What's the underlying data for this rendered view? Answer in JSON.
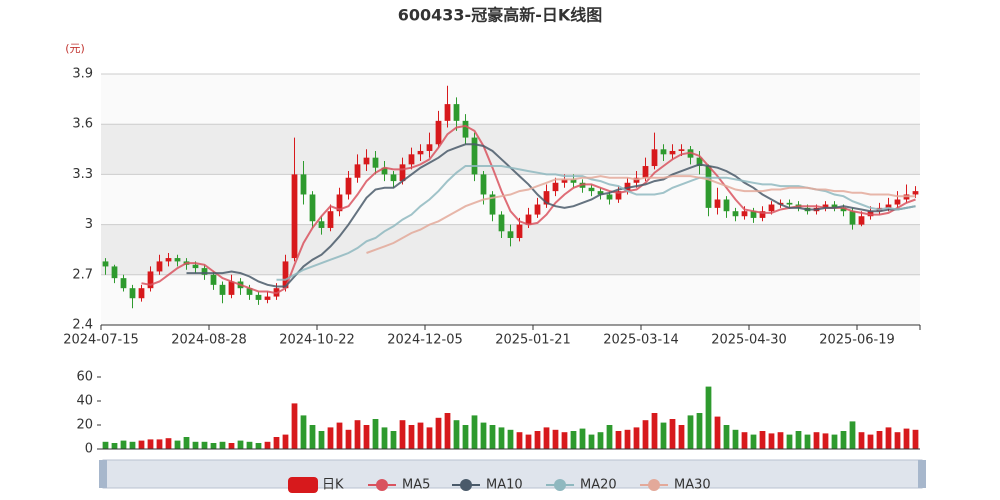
{
  "chart_data": [
    {
      "type": "candlestick",
      "title": "600433-冠豪高新-日K线图",
      "unit": "(元)",
      "categories": [
        "2024-07-15",
        null,
        null,
        null,
        null,
        null,
        null,
        null,
        null,
        null,
        null,
        null,
        "2024-08-28",
        null,
        null,
        null,
        null,
        null,
        null,
        null,
        null,
        null,
        null,
        null,
        "2024-10-22",
        null,
        null,
        null,
        null,
        null,
        null,
        null,
        null,
        null,
        null,
        null,
        "2024-12-05",
        null,
        null,
        null,
        null,
        null,
        null,
        null,
        null,
        null,
        null,
        null,
        "2025-01-21",
        null,
        null,
        null,
        null,
        null,
        null,
        null,
        null,
        null,
        null,
        null,
        "2025-03-14",
        null,
        null,
        null,
        null,
        null,
        null,
        null,
        null,
        null,
        null,
        null,
        "2025-04-30",
        null,
        null,
        null,
        null,
        null,
        null,
        null,
        null,
        null,
        null,
        null,
        "2025-06-19",
        null,
        null,
        null,
        null,
        null,
        null
      ],
      "candles": {
        "name": "日K",
        "up_color": "#d7191c",
        "down_color": "#2e9a2e",
        "values": [
          [
            2.78,
            2.75,
            2.7,
            2.8
          ],
          [
            2.75,
            2.68,
            2.65,
            2.76
          ],
          [
            2.68,
            2.62,
            2.6,
            2.7
          ],
          [
            2.62,
            2.56,
            2.5,
            2.64
          ],
          [
            2.56,
            2.62,
            2.54,
            2.64
          ],
          [
            2.62,
            2.72,
            2.6,
            2.75
          ],
          [
            2.72,
            2.78,
            2.7,
            2.82
          ],
          [
            2.78,
            2.8,
            2.75,
            2.83
          ],
          [
            2.8,
            2.78,
            2.75,
            2.82
          ],
          [
            2.78,
            2.76,
            2.73,
            2.8
          ],
          [
            2.76,
            2.74,
            2.71,
            2.78
          ],
          [
            2.74,
            2.7,
            2.67,
            2.76
          ],
          [
            2.7,
            2.64,
            2.61,
            2.72
          ],
          [
            2.64,
            2.58,
            2.53,
            2.66
          ],
          [
            2.58,
            2.66,
            2.56,
            2.7
          ],
          [
            2.66,
            2.62,
            2.58,
            2.68
          ],
          [
            2.62,
            2.58,
            2.55,
            2.64
          ],
          [
            2.58,
            2.55,
            2.52,
            2.6
          ],
          [
            2.55,
            2.57,
            2.53,
            2.6
          ],
          [
            2.57,
            2.62,
            2.55,
            2.65
          ],
          [
            2.62,
            2.78,
            2.6,
            2.82
          ],
          [
            2.8,
            3.3,
            2.78,
            3.52
          ],
          [
            3.3,
            3.18,
            3.12,
            3.38
          ],
          [
            3.18,
            3.02,
            2.98,
            3.2
          ],
          [
            3.02,
            2.98,
            2.94,
            3.05
          ],
          [
            2.98,
            3.08,
            2.96,
            3.12
          ],
          [
            3.08,
            3.18,
            3.05,
            3.22
          ],
          [
            3.18,
            3.28,
            3.15,
            3.32
          ],
          [
            3.28,
            3.36,
            3.25,
            3.42
          ],
          [
            3.36,
            3.4,
            3.32,
            3.45
          ],
          [
            3.4,
            3.34,
            3.3,
            3.44
          ],
          [
            3.34,
            3.3,
            3.26,
            3.38
          ],
          [
            3.3,
            3.26,
            3.22,
            3.32
          ],
          [
            3.26,
            3.36,
            3.24,
            3.4
          ],
          [
            3.36,
            3.42,
            3.33,
            3.46
          ],
          [
            3.42,
            3.44,
            3.38,
            3.48
          ],
          [
            3.44,
            3.48,
            3.4,
            3.55
          ],
          [
            3.48,
            3.62,
            3.46,
            3.68
          ],
          [
            3.62,
            3.72,
            3.58,
            3.83
          ],
          [
            3.72,
            3.62,
            3.56,
            3.76
          ],
          [
            3.62,
            3.52,
            3.48,
            3.66
          ],
          [
            3.52,
            3.3,
            3.26,
            3.55
          ],
          [
            3.3,
            3.18,
            3.12,
            3.32
          ],
          [
            3.18,
            3.06,
            3.02,
            3.2
          ],
          [
            3.06,
            2.96,
            2.92,
            3.08
          ],
          [
            2.96,
            2.92,
            2.87,
            3.0
          ],
          [
            2.92,
            3.0,
            2.9,
            3.04
          ],
          [
            3.0,
            3.06,
            2.98,
            3.1
          ],
          [
            3.06,
            3.12,
            3.04,
            3.16
          ],
          [
            3.12,
            3.2,
            3.1,
            3.24
          ],
          [
            3.2,
            3.25,
            3.17,
            3.28
          ],
          [
            3.25,
            3.27,
            3.22,
            3.3
          ],
          [
            3.27,
            3.25,
            3.22,
            3.3
          ],
          [
            3.25,
            3.22,
            3.19,
            3.27
          ],
          [
            3.22,
            3.2,
            3.17,
            3.24
          ],
          [
            3.2,
            3.18,
            3.15,
            3.22
          ],
          [
            3.18,
            3.15,
            3.12,
            3.2
          ],
          [
            3.15,
            3.2,
            3.13,
            3.23
          ],
          [
            3.2,
            3.25,
            3.18,
            3.28
          ],
          [
            3.25,
            3.28,
            3.22,
            3.32
          ],
          [
            3.28,
            3.35,
            3.26,
            3.4
          ],
          [
            3.35,
            3.45,
            3.33,
            3.55
          ],
          [
            3.45,
            3.42,
            3.38,
            3.48
          ],
          [
            3.42,
            3.44,
            3.39,
            3.48
          ],
          [
            3.44,
            3.45,
            3.41,
            3.48
          ],
          [
            3.45,
            3.4,
            3.36,
            3.47
          ],
          [
            3.4,
            3.35,
            3.3,
            3.44
          ],
          [
            3.35,
            3.1,
            3.05,
            3.36
          ],
          [
            3.1,
            3.15,
            3.06,
            3.22
          ],
          [
            3.15,
            3.08,
            3.04,
            3.17
          ],
          [
            3.08,
            3.05,
            3.02,
            3.1
          ],
          [
            3.05,
            3.08,
            3.03,
            3.11
          ],
          [
            3.08,
            3.04,
            3.01,
            3.1
          ],
          [
            3.04,
            3.08,
            3.02,
            3.11
          ],
          [
            3.08,
            3.12,
            3.06,
            3.14
          ],
          [
            3.12,
            3.13,
            3.1,
            3.15
          ],
          [
            3.13,
            3.12,
            3.1,
            3.15
          ],
          [
            3.12,
            3.1,
            3.08,
            3.14
          ],
          [
            3.1,
            3.08,
            3.06,
            3.12
          ],
          [
            3.08,
            3.1,
            3.06,
            3.12
          ],
          [
            3.1,
            3.12,
            3.08,
            3.14
          ],
          [
            3.12,
            3.1,
            3.08,
            3.14
          ],
          [
            3.1,
            3.08,
            3.05,
            3.12
          ],
          [
            3.08,
            3.0,
            2.97,
            3.1
          ],
          [
            3.0,
            3.05,
            2.99,
            3.08
          ],
          [
            3.05,
            3.08,
            3.03,
            3.11
          ],
          [
            3.08,
            3.1,
            3.06,
            3.13
          ],
          [
            3.1,
            3.12,
            3.08,
            3.16
          ],
          [
            3.12,
            3.15,
            3.1,
            3.2
          ],
          [
            3.15,
            3.18,
            3.13,
            3.24
          ],
          [
            3.18,
            3.2,
            3.16,
            3.23
          ]
        ]
      },
      "series": [
        {
          "name": "MA5",
          "color": "#d9535f",
          "values": [
            null,
            null,
            null,
            null,
            2.65,
            2.64,
            2.66,
            2.7,
            2.74,
            2.77,
            2.77,
            2.76,
            2.72,
            2.68,
            2.66,
            2.64,
            2.62,
            2.6,
            2.6,
            2.59,
            2.62,
            2.76,
            2.89,
            2.98,
            3.05,
            3.11,
            3.09,
            3.11,
            3.18,
            3.26,
            3.31,
            3.34,
            3.33,
            3.33,
            3.34,
            3.36,
            3.39,
            3.46,
            3.54,
            3.58,
            3.59,
            3.56,
            3.47,
            3.34,
            3.2,
            3.08,
            3.02,
            3.0,
            3.01,
            3.06,
            3.13,
            3.18,
            3.22,
            3.24,
            3.24,
            3.22,
            3.2,
            3.19,
            3.2,
            3.21,
            3.25,
            3.31,
            3.35,
            3.39,
            3.42,
            3.43,
            3.41,
            3.35,
            3.29,
            3.22,
            3.15,
            3.09,
            3.08,
            3.07,
            3.07,
            3.09,
            3.1,
            3.11,
            3.11,
            3.11,
            3.1,
            3.1,
            3.1,
            3.08,
            3.07,
            3.06,
            3.06,
            3.07,
            3.1,
            3.13,
            3.15
          ]
        },
        {
          "name": "MA10",
          "color": "#4a5a6a",
          "values": [
            null,
            null,
            null,
            null,
            null,
            null,
            null,
            null,
            null,
            2.71,
            2.71,
            2.71,
            2.71,
            2.71,
            2.72,
            2.71,
            2.69,
            2.66,
            2.64,
            2.63,
            2.63,
            2.69,
            2.75,
            2.79,
            2.82,
            2.87,
            2.93,
            3.0,
            3.08,
            3.16,
            3.21,
            3.22,
            3.22,
            3.26,
            3.3,
            3.34,
            3.37,
            3.4,
            3.44,
            3.46,
            3.48,
            3.48,
            3.47,
            3.44,
            3.39,
            3.34,
            3.29,
            3.24,
            3.18,
            3.13,
            3.11,
            3.1,
            3.11,
            3.13,
            3.15,
            3.18,
            3.19,
            3.21,
            3.22,
            3.23,
            3.24,
            3.26,
            3.27,
            3.3,
            3.32,
            3.34,
            3.36,
            3.35,
            3.34,
            3.32,
            3.29,
            3.25,
            3.22,
            3.18,
            3.15,
            3.12,
            3.1,
            3.1,
            3.09,
            3.09,
            3.1,
            3.1,
            3.11,
            3.1,
            3.09,
            3.08,
            3.08,
            3.09,
            3.09,
            3.1,
            3.11
          ]
        },
        {
          "name": "MA20",
          "color": "#8fb8bf",
          "values": [
            null,
            null,
            null,
            null,
            null,
            null,
            null,
            null,
            null,
            null,
            null,
            null,
            null,
            null,
            null,
            null,
            null,
            null,
            null,
            2.67,
            2.67,
            2.7,
            2.73,
            2.75,
            2.77,
            2.79,
            2.81,
            2.83,
            2.86,
            2.9,
            2.92,
            2.96,
            2.99,
            3.03,
            3.06,
            3.11,
            3.15,
            3.2,
            3.26,
            3.31,
            3.35,
            3.35,
            3.35,
            3.35,
            3.35,
            3.34,
            3.33,
            3.32,
            3.31,
            3.3,
            3.3,
            3.29,
            3.29,
            3.29,
            3.27,
            3.26,
            3.24,
            3.23,
            3.2,
            3.18,
            3.18,
            3.18,
            3.19,
            3.22,
            3.24,
            3.26,
            3.28,
            3.28,
            3.28,
            3.28,
            3.27,
            3.26,
            3.25,
            3.24,
            3.24,
            3.23,
            3.23,
            3.23,
            3.22,
            3.21,
            3.2,
            3.18,
            3.17,
            3.14,
            3.12,
            3.1,
            3.09,
            3.1,
            3.09,
            3.1,
            3.11
          ]
        },
        {
          "name": "MA30",
          "color": "#e3a99a",
          "values": [
            null,
            null,
            null,
            null,
            null,
            null,
            null,
            null,
            null,
            null,
            null,
            null,
            null,
            null,
            null,
            null,
            null,
            null,
            null,
            null,
            null,
            null,
            null,
            null,
            null,
            null,
            null,
            null,
            null,
            2.83,
            2.85,
            2.87,
            2.89,
            2.92,
            2.95,
            2.97,
            3.0,
            3.02,
            3.05,
            3.08,
            3.11,
            3.13,
            3.15,
            3.16,
            3.17,
            3.18,
            3.2,
            3.21,
            3.23,
            3.25,
            3.27,
            3.27,
            3.27,
            3.28,
            3.28,
            3.29,
            3.28,
            3.28,
            3.28,
            3.27,
            3.28,
            3.28,
            3.28,
            3.29,
            3.29,
            3.29,
            3.28,
            3.27,
            3.25,
            3.23,
            3.21,
            3.2,
            3.2,
            3.2,
            3.21,
            3.21,
            3.22,
            3.22,
            3.22,
            3.21,
            3.21,
            3.2,
            3.2,
            3.19,
            3.19,
            3.18,
            3.18,
            3.18,
            3.17,
            3.17,
            3.17
          ]
        }
      ],
      "ylim": [
        2.4,
        3.9
      ],
      "yticks": [
        2.4,
        2.7,
        3,
        3.3,
        3.6,
        3.9
      ],
      "grid": true
    },
    {
      "type": "bar",
      "values": [
        6,
        5,
        7,
        6,
        7,
        8,
        8,
        9,
        7,
        10,
        6,
        6,
        5,
        6,
        5,
        7,
        6,
        5,
        6,
        10,
        12,
        38,
        28,
        20,
        15,
        18,
        22,
        16,
        24,
        20,
        25,
        18,
        15,
        24,
        20,
        22,
        18,
        26,
        30,
        24,
        20,
        28,
        22,
        20,
        18,
        16,
        14,
        12,
        15,
        18,
        16,
        14,
        15,
        17,
        12,
        14,
        20,
        15,
        16,
        18,
        24,
        30,
        22,
        25,
        20,
        28,
        30,
        52,
        27,
        20,
        16,
        14,
        12,
        15,
        13,
        14,
        12,
        15,
        12,
        14,
        13,
        12,
        15,
        23,
        14,
        12,
        15,
        18,
        14,
        17,
        16
      ],
      "ylim": [
        0,
        60
      ],
      "yticks": [
        0,
        20,
        40,
        60
      ]
    }
  ]
}
